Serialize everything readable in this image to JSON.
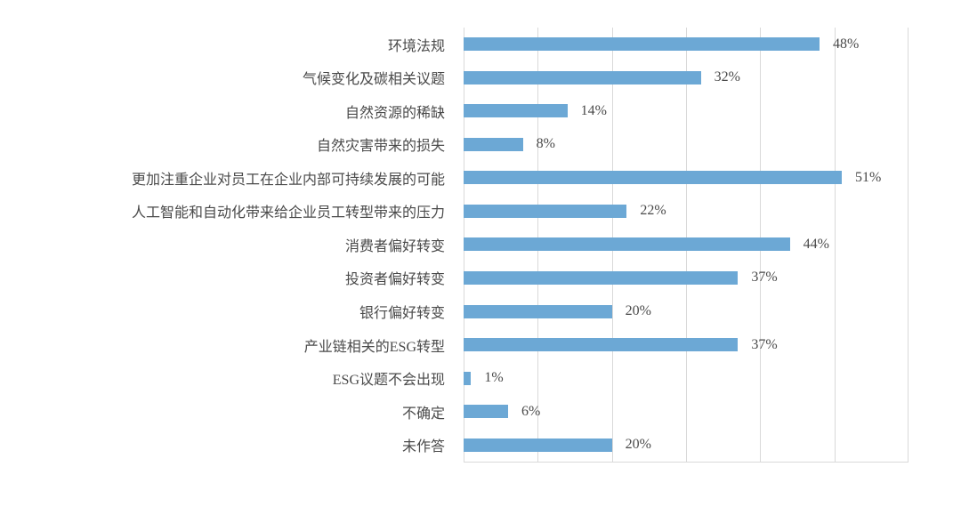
{
  "chart_data": {
    "type": "bar",
    "orientation": "horizontal",
    "categories": [
      "环境法规",
      "气候变化及碳相关议题",
      "自然资源的稀缺",
      "自然灾害带来的损失",
      "更加注重企业对员工在企业内部可持续发展的可能",
      "人工智能和自动化带来给企业员工转型带来的压力",
      "消费者偏好转变",
      "投资者偏好转变",
      "银行偏好转变",
      "产业链相关的ESG转型",
      "ESG议题不会出现",
      "不确定",
      "未作答"
    ],
    "values": [
      48,
      32,
      14,
      8,
      51,
      22,
      44,
      37,
      20,
      37,
      1,
      6,
      20
    ],
    "value_labels": [
      "48%",
      "32%",
      "14%",
      "8%",
      "51%",
      "22%",
      "44%",
      "37%",
      "20%",
      "37%",
      "1%",
      "6%",
      "20%"
    ],
    "xlim": [
      0,
      60
    ],
    "gridline_interval": 10,
    "grid": "vertical-gridlines-only",
    "legend": "none",
    "colors": {
      "bar": "#6CA8D5",
      "gridline": "#D9D9D9",
      "text": "#4A4A4A"
    }
  }
}
